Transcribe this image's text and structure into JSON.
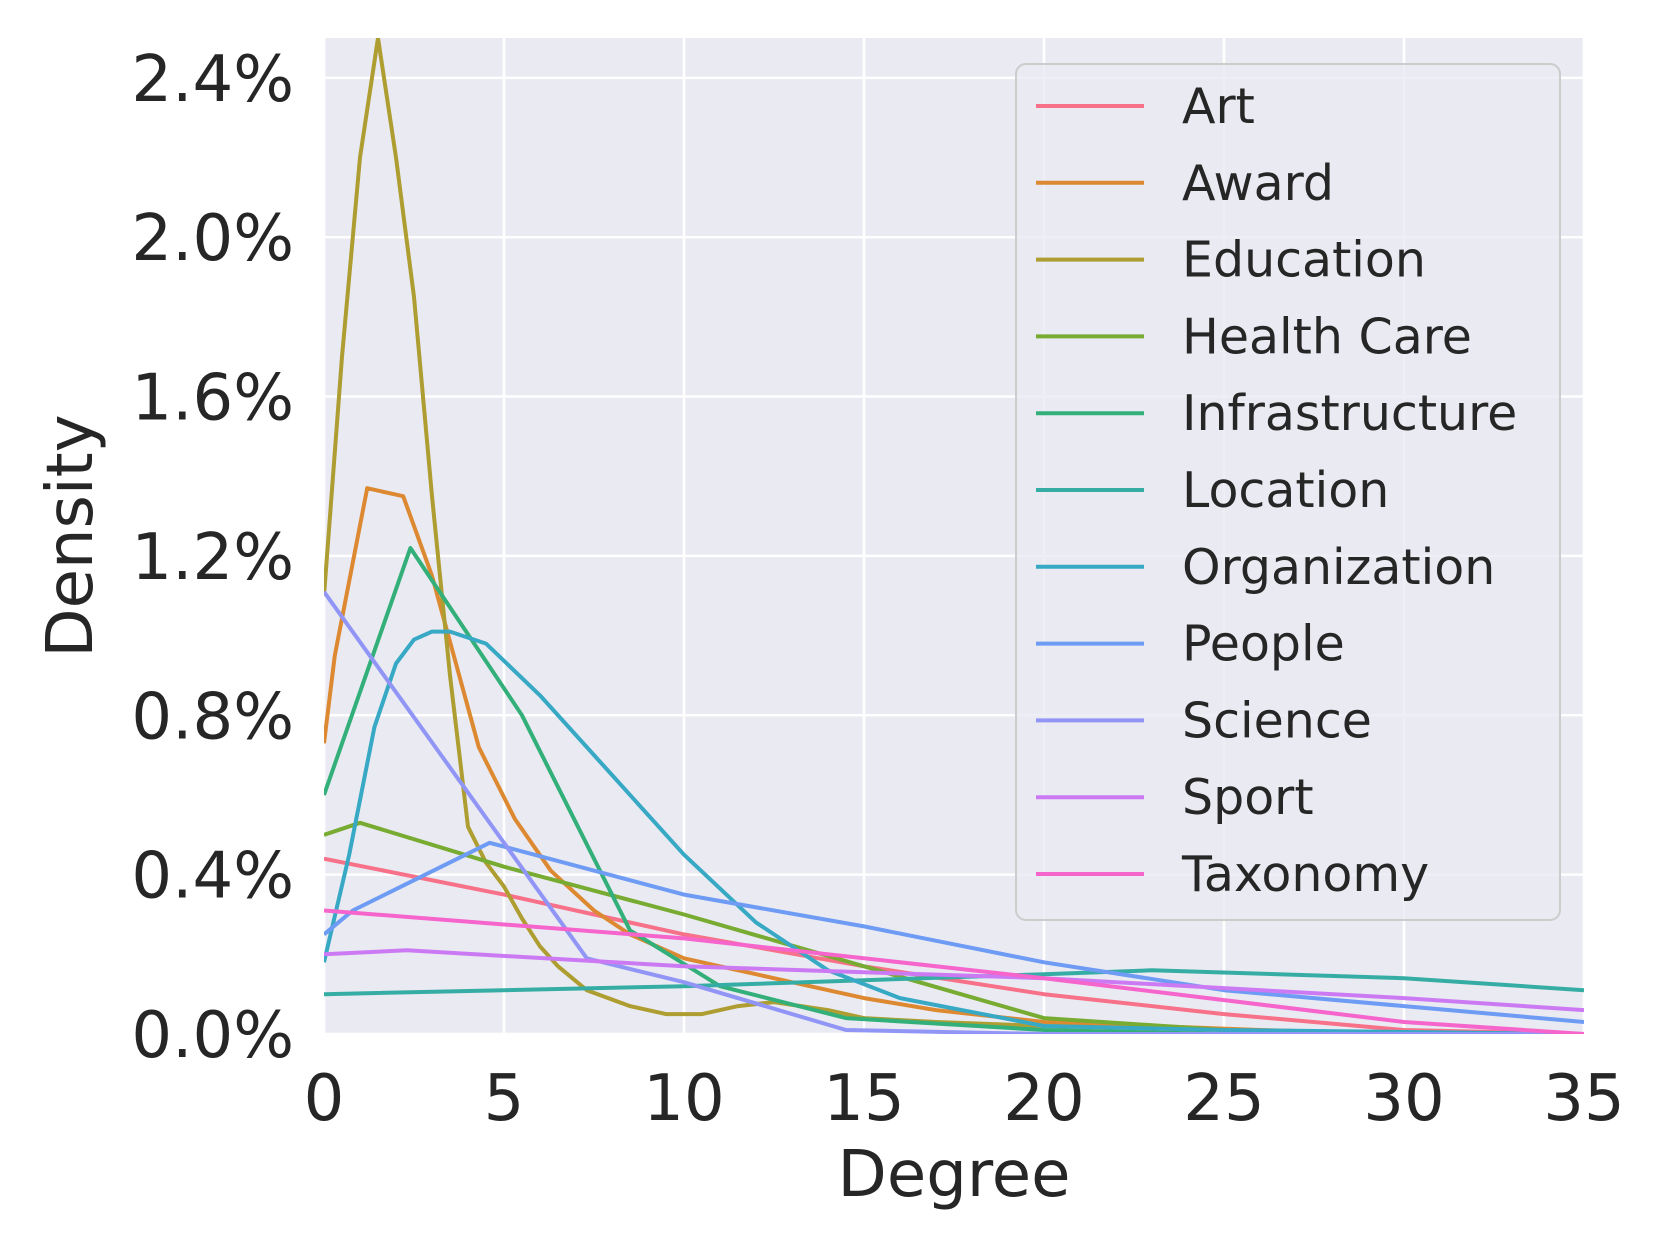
{
  "chart_data": {
    "type": "line",
    "title": "",
    "xlabel": "Degree",
    "ylabel": "Density",
    "xlim": [
      0,
      35
    ],
    "ylim": [
      0,
      0.025
    ],
    "x_ticks": [
      0,
      5,
      10,
      15,
      20,
      25,
      30,
      35
    ],
    "x_tick_labels": [
      "0",
      "5",
      "10",
      "15",
      "20",
      "25",
      "30",
      "35"
    ],
    "y_ticks": [
      0,
      0.004,
      0.008,
      0.012,
      0.016,
      0.02,
      0.024
    ],
    "y_tick_labels": [
      "0.0%",
      "0.4%",
      "0.8%",
      "1.2%",
      "1.6%",
      "2.0%",
      "2.4%"
    ],
    "grid": true,
    "legend_position": "top-right",
    "series": [
      {
        "name": "Art",
        "color": "#f77189",
        "x": [
          0,
          5,
          10,
          15,
          20,
          25,
          30,
          35
        ],
        "y": [
          0.0044,
          0.0035,
          0.0025,
          0.0017,
          0.001,
          0.0005,
          0.0001,
          0.0
        ]
      },
      {
        "name": "Award",
        "color": "#dc8932",
        "x": [
          0,
          0.3,
          1.2,
          2.2,
          3,
          4.3,
          5.3,
          6.3,
          7.5,
          8.5,
          10,
          11,
          12,
          13.5,
          15,
          17,
          20,
          23,
          26,
          30,
          35
        ],
        "y": [
          0.0073,
          0.0095,
          0.0137,
          0.0135,
          0.0115,
          0.0072,
          0.0054,
          0.0041,
          0.0031,
          0.0025,
          0.0019,
          0.0017,
          0.0015,
          0.0012,
          0.0009,
          0.0006,
          0.0003,
          0.0002,
          0.0001,
          0.0,
          0.0
        ]
      },
      {
        "name": "Education",
        "color": "#ae9d31",
        "x": [
          0,
          0.5,
          1,
          1.5,
          2,
          2.5,
          3,
          3.5,
          4,
          4.5,
          5,
          5.5,
          6,
          6.5,
          7.3,
          8.5,
          9.5,
          10.5,
          11.5,
          12.5,
          14,
          15,
          17,
          20,
          25,
          30,
          35
        ],
        "y": [
          0.011,
          0.017,
          0.022,
          0.025,
          0.022,
          0.0185,
          0.0135,
          0.009,
          0.0052,
          0.0043,
          0.0037,
          0.0029,
          0.0022,
          0.0017,
          0.0011,
          0.0007,
          0.0005,
          0.0005,
          0.0007,
          0.0008,
          0.0006,
          0.0004,
          0.0003,
          0.0002,
          0.0001,
          0.0,
          0.0
        ]
      },
      {
        "name": "Health Care",
        "color": "#77ab31",
        "x": [
          0,
          1,
          5,
          10,
          15,
          20,
          25,
          30,
          35
        ],
        "y": [
          0.005,
          0.0053,
          0.0042,
          0.003,
          0.0017,
          0.0004,
          0.0001,
          0.0,
          0.0
        ]
      },
      {
        "name": "Infrastructure",
        "color": "#33b07a",
        "x": [
          0,
          2.4,
          5.5,
          8.5,
          11,
          14.5,
          20,
          25,
          35
        ],
        "y": [
          0.006,
          0.0122,
          0.008,
          0.0026,
          0.0012,
          0.0004,
          0.0001,
          0.0,
          0.0
        ]
      },
      {
        "name": "Location",
        "color": "#36ada4",
        "x": [
          0,
          10,
          20,
          23,
          30,
          35
        ],
        "y": [
          0.001,
          0.0012,
          0.0015,
          0.0016,
          0.0014,
          0.0011
        ]
      },
      {
        "name": "Organization",
        "color": "#38a9c5",
        "x": [
          0,
          0.7,
          1.4,
          2,
          2.5,
          3,
          3.5,
          4.5,
          6,
          8,
          10,
          12,
          14,
          16,
          20,
          25,
          35
        ],
        "y": [
          0.0018,
          0.0045,
          0.0077,
          0.0093,
          0.0099,
          0.0101,
          0.0101,
          0.0098,
          0.0085,
          0.0065,
          0.0045,
          0.0028,
          0.0016,
          0.0009,
          0.0002,
          0.0001,
          0.0
        ]
      },
      {
        "name": "People",
        "color": "#6e9bf4",
        "x": [
          0,
          0.8,
          4.6,
          10,
          15,
          20,
          25,
          30,
          35
        ],
        "y": [
          0.0025,
          0.0031,
          0.0048,
          0.0035,
          0.0027,
          0.0018,
          0.0011,
          0.0007,
          0.0003
        ]
      },
      {
        "name": "Science",
        "color": "#9195f6",
        "x": [
          0,
          7.3,
          10,
          14.5,
          20,
          35
        ],
        "y": [
          0.0111,
          0.0019,
          0.0013,
          0.0001,
          0.0,
          0.0
        ]
      },
      {
        "name": "Sport",
        "color": "#cc7af4",
        "x": [
          0,
          2.3,
          10,
          20,
          30,
          35
        ],
        "y": [
          0.002,
          0.0021,
          0.0017,
          0.0014,
          0.0009,
          0.0006
        ]
      },
      {
        "name": "Taxonomy",
        "color": "#f565cc",
        "x": [
          0,
          10,
          20,
          30,
          35
        ],
        "y": [
          0.0031,
          0.0024,
          0.0014,
          0.0003,
          0.0
        ]
      }
    ]
  }
}
